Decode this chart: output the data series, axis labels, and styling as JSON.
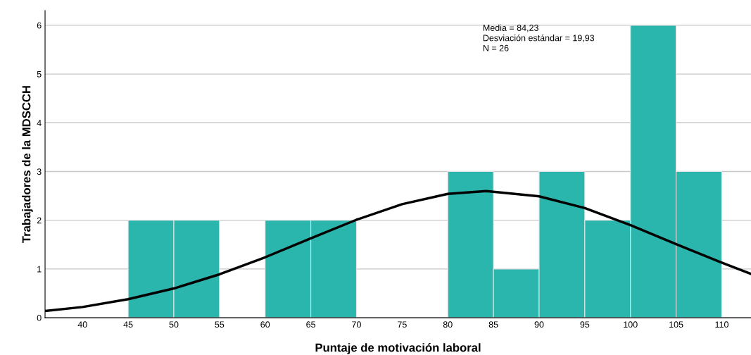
{
  "chart_data": {
    "type": "histogram",
    "xlabel": "Puntaje de motivación laboral",
    "ylabel": "Trabajadores de la MDSCCH",
    "annotations": [
      "Media = 84,23",
      "Desviación estándar = 19,93",
      "N = 26"
    ],
    "bins": [
      45,
      50,
      55,
      60,
      65,
      70,
      75,
      80,
      85,
      90,
      95,
      100,
      105,
      110
    ],
    "series": [
      {
        "color": "#2ab5ad",
        "values": [
          2,
          2,
          null,
          2,
          2,
          null,
          null,
          3,
          1,
          3,
          2,
          6,
          3
        ]
      },
      {
        "type": "line",
        "color": "#000000",
        "x": [
          35.9,
          40,
          45,
          50,
          55,
          60,
          65,
          70,
          75,
          80,
          84.2,
          90,
          95,
          100,
          105,
          110,
          113.2
        ],
        "values": [
          0.14,
          0.22,
          0.38,
          0.6,
          0.89,
          1.24,
          1.63,
          2.01,
          2.33,
          2.54,
          2.6,
          2.49,
          2.25,
          1.9,
          1.51,
          1.13,
          0.9
        ]
      }
    ],
    "xlim": [
      35.9,
      113.2
    ],
    "xticks": [
      40,
      45,
      50,
      55,
      60,
      65,
      70,
      75,
      80,
      85,
      90,
      95,
      100,
      105,
      110
    ],
    "ylim": [
      0,
      6.3
    ],
    "yticks": [
      0,
      1,
      2,
      3,
      4,
      5,
      6
    ],
    "grid": "y",
    "legend": false
  }
}
